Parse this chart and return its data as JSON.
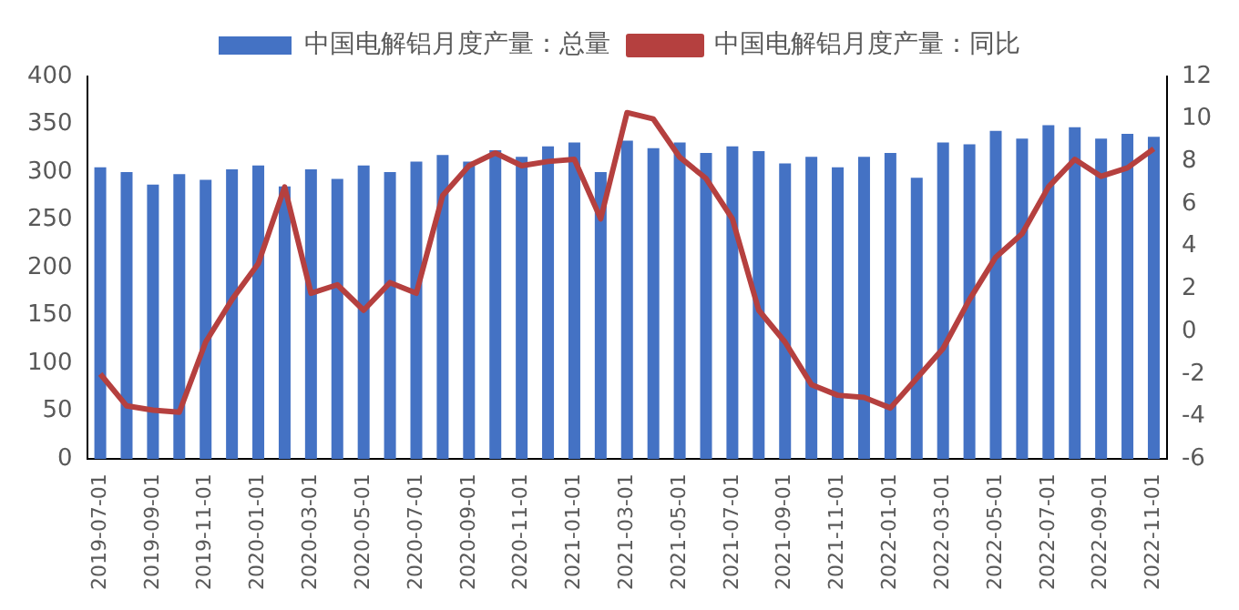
{
  "chart_data": {
    "type": "bar",
    "categories": [
      "2019-07-01",
      null,
      "2019-09-01",
      null,
      "2019-11-01",
      null,
      "2020-01-01",
      null,
      "2020-03-01",
      null,
      "2020-05-01",
      null,
      "2020-07-01",
      null,
      "2020-09-01",
      null,
      "2020-11-01",
      null,
      "2021-01-01",
      null,
      "2021-03-01",
      null,
      "2021-05-01",
      null,
      "2021-07-01",
      null,
      "2021-09-01",
      null,
      "2021-11-01",
      null,
      "2022-01-01",
      null,
      "2022-03-01",
      null,
      "2022-05-01",
      null,
      "2022-07-01",
      null,
      "2022-09-01",
      null,
      "2022-11-01"
    ],
    "series": [
      {
        "name": "中国电解铝月度产量：总量",
        "color": "#4472c4",
        "values": [
          305,
          300,
          287,
          298,
          292,
          303,
          307,
          285,
          303,
          293,
          307,
          300,
          311,
          318,
          311,
          323,
          316,
          327,
          331,
          300,
          333,
          325,
          331,
          320,
          327,
          322,
          309,
          316,
          305,
          316,
          320,
          294,
          331,
          329,
          343,
          335,
          349,
          347,
          335,
          340,
          337
        ]
      },
      {
        "name": "中国电解铝月度产量：同比",
        "type": "line",
        "axis": "y2",
        "color": "#b5403f",
        "values": [
          -2,
          -3.5,
          -3.7,
          -3.8,
          -0.5,
          1.5,
          3.2,
          6.8,
          1.8,
          2.2,
          1,
          2.3,
          1.8,
          6.4,
          7.8,
          8.4,
          7.8,
          8,
          8.1,
          5.3,
          10.3,
          10,
          8.2,
          7.2,
          5.3,
          1,
          -0.5,
          -2.5,
          -3,
          -3.1,
          -3.6,
          -2.2,
          -0.8,
          1.5,
          3.5,
          4.6,
          6.8,
          8.1,
          7.3,
          7.7,
          8.6
        ]
      }
    ],
    "ylim": [
      0,
      400
    ],
    "yticks": [
      0,
      50,
      100,
      150,
      200,
      250,
      300,
      350,
      400
    ],
    "y2lim": [
      -6,
      12
    ],
    "y2ticks": [
      -6,
      -4,
      -2,
      0,
      2,
      4,
      6,
      8,
      10,
      12
    ],
    "grid": false,
    "legend": "top",
    "marker": "none",
    "line_style": "solid"
  }
}
